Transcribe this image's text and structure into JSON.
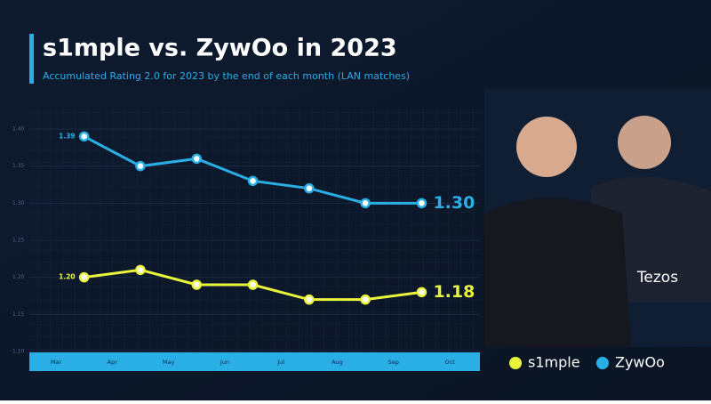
{
  "chart_data": {
    "type": "line",
    "title": "s1mple vs. ZywOo in 2023",
    "subtitle": "Accumulated Rating 2.0 for 2023 by the end of each month (LAN matches)",
    "categories": [
      "Mar",
      "Apr",
      "May",
      "Jun",
      "Jul",
      "Aug",
      "Sep",
      "Oct"
    ],
    "series": [
      {
        "name": "s1mple",
        "color": "#e9f53b",
        "values": [
          1.2,
          1.21,
          1.19,
          1.19,
          1.17,
          1.17,
          1.18,
          null
        ],
        "value_labels": [
          "1.20",
          null,
          null,
          null,
          null,
          null,
          "1.18",
          null
        ]
      },
      {
        "name": "ZywOo",
        "color": "#2aaee6",
        "values": [
          1.39,
          1.35,
          1.36,
          1.33,
          1.32,
          1.3,
          1.3,
          null
        ],
        "value_labels": [
          "1.39",
          null,
          null,
          null,
          null,
          null,
          "1.30",
          null
        ]
      }
    ],
    "ylim": [
      1.1,
      1.42
    ],
    "yticks": [
      {
        "value": 1.1,
        "label": "1.10"
      },
      {
        "value": 1.15,
        "label": "1.15"
      },
      {
        "value": 1.2,
        "label": "1.20"
      },
      {
        "value": 1.25,
        "label": "1.25"
      },
      {
        "value": 1.3,
        "label": "1.30"
      },
      {
        "value": 1.35,
        "label": "1.35"
      },
      {
        "value": 1.4,
        "label": "1.40"
      }
    ],
    "grid": true
  }
}
